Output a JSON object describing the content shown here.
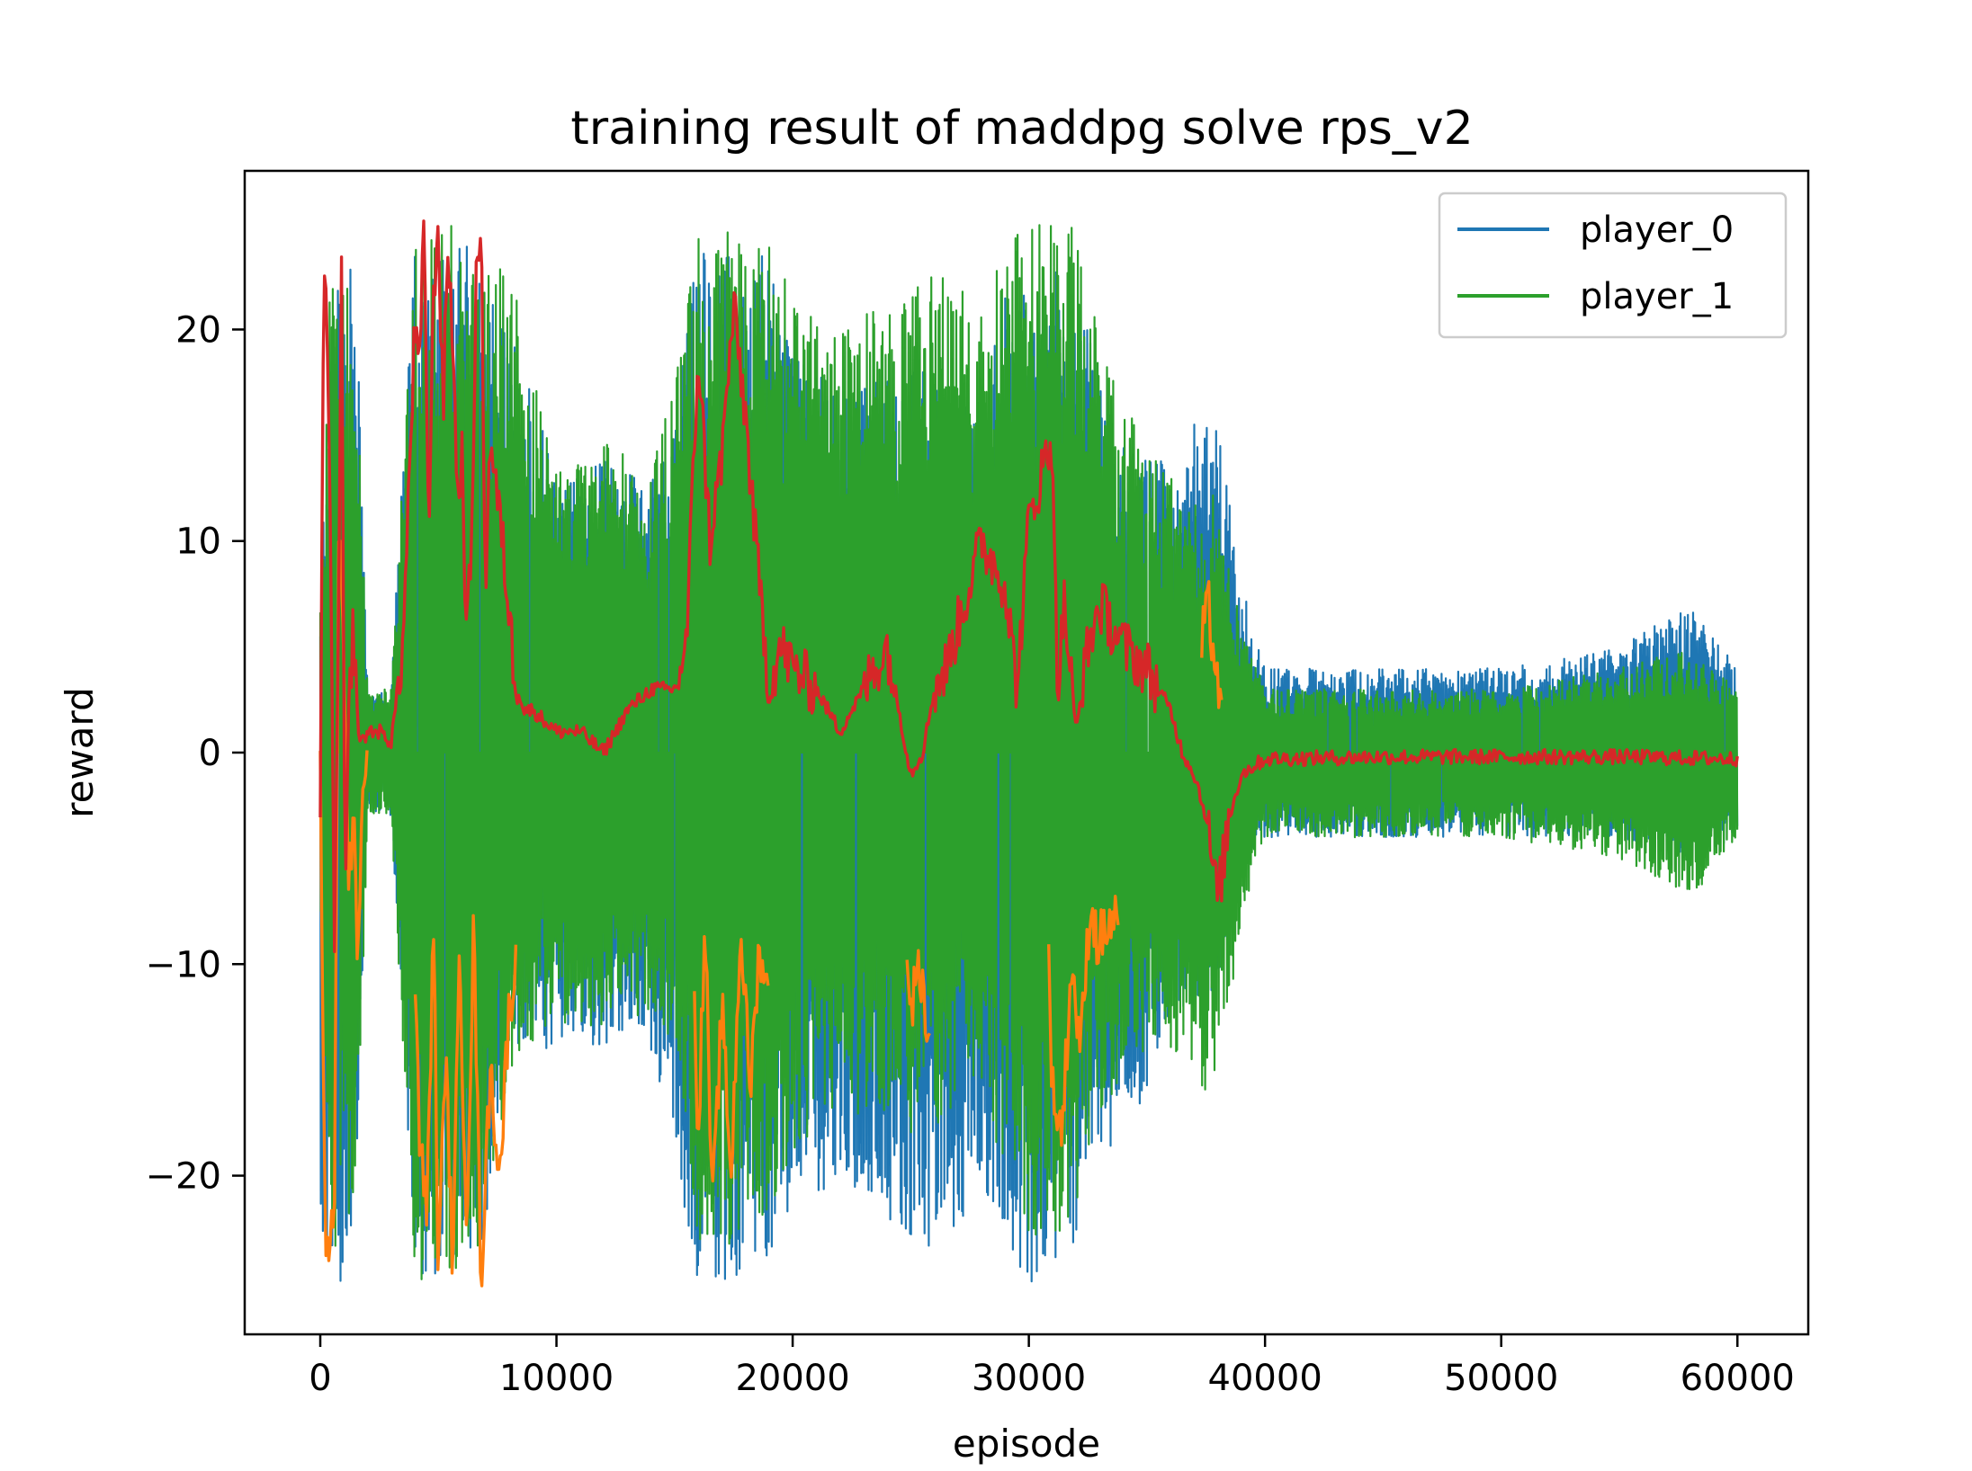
{
  "chart_data": {
    "type": "line",
    "title": "training result of maddpg solve rps_v2",
    "xlabel": "episode",
    "ylabel": "reward",
    "xlim": [
      -3200,
      63000
    ],
    "ylim": [
      -27.5,
      27.5
    ],
    "xticks": [
      0,
      10000,
      20000,
      30000,
      40000,
      50000,
      60000
    ],
    "xtick_labels": [
      "0",
      "10000",
      "20000",
      "30000",
      "40000",
      "50000",
      "60000"
    ],
    "yticks": [
      -20,
      -10,
      0,
      10,
      20
    ],
    "ytick_labels": [
      "−20",
      "−10",
      "0",
      "10",
      "20"
    ],
    "grid": false,
    "legend": {
      "position": "top-right",
      "entries": [
        {
          "label": "player_0",
          "color": "#1f77b4"
        },
        {
          "label": "player_1",
          "color": "#2ca02c"
        }
      ]
    },
    "series": [
      {
        "name": "player_0",
        "color": "#1f77b4",
        "kind": "band",
        "x": [
          0,
          500,
          1000,
          1500,
          2000,
          3000,
          4000,
          5000,
          6000,
          7000,
          8000,
          10000,
          12000,
          14000,
          15000,
          16000,
          17000,
          18000,
          19000,
          20000,
          22000,
          24000,
          26000,
          28000,
          29000,
          30000,
          31000,
          32000,
          33000,
          34000,
          35000,
          36000,
          37000,
          38000,
          39000,
          40000,
          45000,
          50000,
          55000,
          58000,
          60000
        ],
        "upper": [
          8,
          22,
          23,
          23,
          3,
          3,
          25,
          25,
          25,
          22,
          21,
          13,
          14,
          13,
          16,
          24,
          24,
          23,
          24,
          19,
          17,
          18,
          18,
          16,
          22,
          23,
          23,
          22,
          18,
          15,
          14,
          14,
          16,
          16,
          8,
          4,
          4,
          4,
          5,
          7,
          4
        ],
        "lower": [
          -25,
          -25,
          -25,
          -21,
          -3,
          -3,
          -25,
          -25,
          -25,
          -23,
          -14,
          -14,
          -14,
          -14,
          -19,
          -25,
          -25,
          -25,
          -24,
          -22,
          -20,
          -22,
          -24,
          -21,
          -24,
          -25,
          -25,
          -24,
          -20,
          -18,
          -16,
          -12,
          -12,
          -11,
          -5,
          -4,
          -4,
          -4,
          -4,
          -5,
          -4
        ]
      },
      {
        "name": "player_1",
        "color": "#2ca02c",
        "kind": "band",
        "x": [
          0,
          500,
          1000,
          1500,
          2000,
          3000,
          4000,
          5000,
          6000,
          7000,
          8000,
          10000,
          12000,
          14000,
          15000,
          16000,
          17000,
          18000,
          19000,
          20000,
          22000,
          24000,
          26000,
          28000,
          29000,
          30000,
          31000,
          32000,
          33000,
          34000,
          35000,
          36000,
          37000,
          38000,
          39000,
          40000,
          45000,
          50000,
          55000,
          58000,
          60000
        ],
        "upper": [
          8,
          25,
          25,
          21,
          3,
          3,
          25,
          25,
          25,
          23,
          23,
          14,
          15,
          13,
          18,
          25,
          25,
          25,
          24,
          22,
          20,
          22,
          23,
          21,
          24,
          25,
          25,
          25,
          20,
          17,
          15,
          13,
          13,
          12,
          6,
          3,
          3,
          3,
          4,
          5,
          3
        ],
        "lower": [
          -8,
          -25,
          -21,
          -23,
          -3,
          -3,
          -25,
          -25,
          -25,
          -23,
          -15,
          -13,
          -13,
          -13,
          -14,
          -23,
          -24,
          -23,
          -22,
          -19,
          -17,
          -18,
          -18,
          -16,
          -20,
          -23,
          -23,
          -22,
          -18,
          -15,
          -14,
          -14,
          -16,
          -16,
          -8,
          -4,
          -4,
          -4,
          -5,
          -7,
          -4
        ]
      },
      {
        "name": "",
        "color": "#ff7f0e",
        "kind": "line",
        "x": [
          0,
          200,
          400,
          600,
          800,
          1000,
          1200,
          1400,
          1600,
          1800,
          2000,
          4000,
          4200,
          4500,
          4800,
          5000,
          5300,
          5600,
          5900,
          6200,
          6500,
          6800,
          7200,
          7600,
          8000,
          8300,
          15800,
          16000,
          16300,
          16600,
          17000,
          17400,
          17800,
          18200,
          18600,
          19000,
          24800,
          25000,
          25400,
          25800,
          30800,
          31000,
          31400,
          31800,
          32200,
          32600,
          32900,
          33500,
          33800,
          37300,
          37600,
          37900,
          38200
        ],
        "y": [
          0,
          -22,
          -25,
          -20,
          13,
          4,
          -6,
          -3,
          -10,
          -2,
          0,
          -10,
          -18,
          -22,
          -8,
          -25,
          -14,
          -24,
          -10,
          -22,
          -8,
          -25,
          -15,
          -20,
          -12,
          -10,
          -10,
          -18,
          -8,
          -22,
          -12,
          -20,
          -8,
          -16,
          -9,
          -12,
          -8,
          -12,
          -10,
          -14,
          -8,
          -16,
          -18,
          -10,
          -14,
          -7,
          -9,
          -8,
          -8,
          5,
          7,
          4,
          2
        ]
      },
      {
        "name": "",
        "color": "#d62728",
        "kind": "line",
        "x": [
          0,
          150,
          300,
          450,
          600,
          750,
          900,
          1050,
          1200,
          1400,
          1600,
          1800,
          2000,
          2500,
          3000,
          3500,
          4000,
          4200,
          4400,
          4600,
          4800,
          5000,
          5200,
          5400,
          5600,
          5800,
          6000,
          6200,
          6400,
          6600,
          6800,
          7000,
          7200,
          7500,
          7800,
          8200,
          8600,
          9000,
          10000,
          11000,
          12000,
          13000,
          14000,
          15000,
          15500,
          16000,
          16500,
          17000,
          17500,
          18000,
          18500,
          19000,
          19500,
          20000,
          21000,
          22000,
          23000,
          24000,
          25000,
          25500,
          26000,
          26500,
          27000,
          28000,
          29000,
          29500,
          30000,
          30500,
          31000,
          31200,
          31500,
          32000,
          32500,
          33000,
          34000,
          35000,
          36000,
          36500,
          37000,
          37500,
          38000,
          38500,
          39000,
          40000,
          45000,
          50000,
          55000,
          60000
        ],
        "y": [
          -4,
          25,
          18,
          10,
          -10,
          4,
          23,
          -8,
          2,
          6,
          1,
          0.5,
          1,
          1,
          0.5,
          5,
          20,
          18,
          25,
          10,
          22,
          25,
          16,
          24,
          20,
          12,
          14,
          5,
          10,
          22,
          25,
          8,
          15,
          12,
          9,
          4,
          2,
          2,
          1,
          1,
          0,
          2,
          3,
          3,
          5,
          19,
          10,
          14,
          21,
          16,
          9,
          3,
          5,
          4,
          3,
          1,
          3,
          5,
          -1,
          0,
          3,
          4,
          6,
          10,
          8,
          3,
          11,
          13,
          15,
          3,
          7,
          1,
          5,
          7,
          5,
          4,
          2,
          0,
          -1,
          -3,
          -7,
          -3,
          -1,
          -0.3,
          -0.2,
          -0.2,
          -0.2,
          -0.3
        ]
      }
    ]
  }
}
